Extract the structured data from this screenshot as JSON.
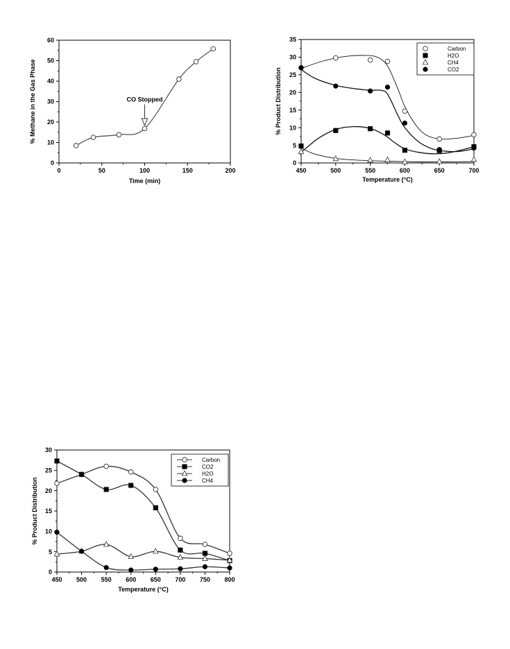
{
  "chart_data": [
    {
      "id": "methane-vs-time",
      "type": "line",
      "xlabel": "Time (min)",
      "ylabel": "% Methane in the Gas Phase",
      "xlim": [
        0,
        200
      ],
      "ylim": [
        0,
        60
      ],
      "xticks": [
        0,
        50,
        100,
        150,
        200
      ],
      "yticks": [
        0,
        10,
        20,
        30,
        40,
        50,
        60
      ],
      "grid": false,
      "series": [
        {
          "marker": "open-circle",
          "color": "#555555",
          "x": [
            20,
            40,
            70,
            100,
            140,
            160,
            180
          ],
          "y": [
            8.5,
            12.5,
            13.8,
            16.8,
            41,
            49.5,
            55.8
          ]
        }
      ],
      "annotations": [
        {
          "text": "CO Stopped",
          "x": 100,
          "y": 30,
          "arrow_to": [
            100,
            18
          ]
        }
      ]
    },
    {
      "id": "product-distribution-1",
      "type": "scatter",
      "xlabel": "Temperature (°C)",
      "ylabel": "% Product Distribution",
      "xlim": [
        450,
        700
      ],
      "ylim": [
        0,
        35
      ],
      "xticks": [
        450,
        500,
        550,
        600,
        650,
        700
      ],
      "yticks": [
        0,
        5,
        10,
        15,
        20,
        25,
        30,
        35
      ],
      "grid": false,
      "legend_position": "top-right",
      "series": [
        {
          "name": "Carbon",
          "marker": "open-circle",
          "x": [
            450,
            500,
            550,
            575,
            600,
            650,
            700
          ],
          "y": [
            27,
            29.8,
            29.2,
            28.8,
            14.7,
            6.8,
            8
          ],
          "fit": [
            [
              450,
              26.8
            ],
            [
              480,
              28.8
            ],
            [
              510,
              30.1
            ],
            [
              540,
              30.5
            ],
            [
              560,
              30
            ],
            [
              575,
              27.5
            ],
            [
              590,
              21
            ],
            [
              600,
              16
            ],
            [
              615,
              11
            ],
            [
              630,
              8
            ],
            [
              650,
              6.8
            ],
            [
              675,
              7
            ],
            [
              700,
              7.8
            ]
          ]
        },
        {
          "name": "H2O",
          "marker": "filled-square",
          "x": [
            450,
            500,
            550,
            575,
            600,
            650,
            700
          ],
          "y": [
            4.8,
            9.2,
            9.7,
            8.5,
            3.6,
            3.5,
            4.6
          ],
          "fit": [
            [
              450,
              3
            ],
            [
              475,
              7
            ],
            [
              500,
              9.5
            ],
            [
              525,
              10.3
            ],
            [
              550,
              9.8
            ],
            [
              570,
              8
            ],
            [
              585,
              5.8
            ],
            [
              600,
              4
            ],
            [
              620,
              3
            ],
            [
              640,
              2.6
            ],
            [
              660,
              2.8
            ],
            [
              680,
              3.6
            ],
            [
              700,
              4.6
            ]
          ]
        },
        {
          "name": "CH4",
          "marker": "open-triangle",
          "x": [
            450,
            500,
            550,
            575,
            600,
            650,
            700
          ],
          "y": [
            3.2,
            1.2,
            0.8,
            0.9,
            0.3,
            0.4,
            1
          ],
          "fit": [
            [
              450,
              4.2
            ],
            [
              470,
              2.5
            ],
            [
              500,
              1.3
            ],
            [
              530,
              0.8
            ],
            [
              575,
              0.5
            ],
            [
              625,
              0.3
            ],
            [
              660,
              0.3
            ],
            [
              700,
              0.4
            ]
          ]
        },
        {
          "name": "CO2",
          "marker": "filled-circle",
          "x": [
            450,
            500,
            550,
            575,
            600,
            650,
            700
          ],
          "y": [
            27,
            21.8,
            20.4,
            21.5,
            11.3,
            3.8,
            4.2
          ],
          "fit": [
            [
              450,
              26.5
            ],
            [
              470,
              24
            ],
            [
              500,
              22
            ],
            [
              530,
              21
            ],
            [
              550,
              20.6
            ],
            [
              565,
              20.6
            ],
            [
              575,
              19.5
            ],
            [
              590,
              13.5
            ],
            [
              600,
              10
            ],
            [
              620,
              6
            ],
            [
              640,
              4
            ],
            [
              660,
              3.3
            ],
            [
              680,
              3.3
            ],
            [
              700,
              4
            ]
          ]
        }
      ]
    },
    {
      "id": "product-distribution-2",
      "type": "line",
      "xlabel": "Temperature (°C)",
      "ylabel": "% Product Distribution",
      "xlim": [
        450,
        800
      ],
      "ylim": [
        0,
        30
      ],
      "xticks": [
        450,
        500,
        550,
        600,
        650,
        700,
        750,
        800
      ],
      "yticks": [
        0,
        5,
        10,
        15,
        20,
        25,
        30
      ],
      "grid": false,
      "legend_position": "top-right",
      "series": [
        {
          "name": "Carbon",
          "marker": "open-circle",
          "x": [
            450,
            500,
            550,
            600,
            650,
            700,
            750,
            800
          ],
          "y": [
            21.8,
            24,
            26,
            24.6,
            20.3,
            8.3,
            6.8,
            4.6
          ]
        },
        {
          "name": "CO2",
          "marker": "filled-square",
          "x": [
            450,
            500,
            550,
            600,
            650,
            700,
            750,
            800
          ],
          "y": [
            27.3,
            24,
            20.3,
            21.3,
            15.8,
            5.4,
            4.6,
            2.8
          ]
        },
        {
          "name": "H2O",
          "marker": "open-triangle",
          "x": [
            450,
            500,
            550,
            600,
            650,
            700,
            750,
            800
          ],
          "y": [
            4.4,
            5.1,
            6.8,
            3.8,
            5.1,
            3.6,
            3.3,
            2.9
          ]
        },
        {
          "name": "CH4",
          "marker": "filled-circle",
          "x": [
            450,
            500,
            550,
            600,
            650,
            700,
            750,
            800
          ],
          "y": [
            9.8,
            5.1,
            1.1,
            0.5,
            0.7,
            0.8,
            1.3,
            1
          ]
        }
      ]
    }
  ]
}
